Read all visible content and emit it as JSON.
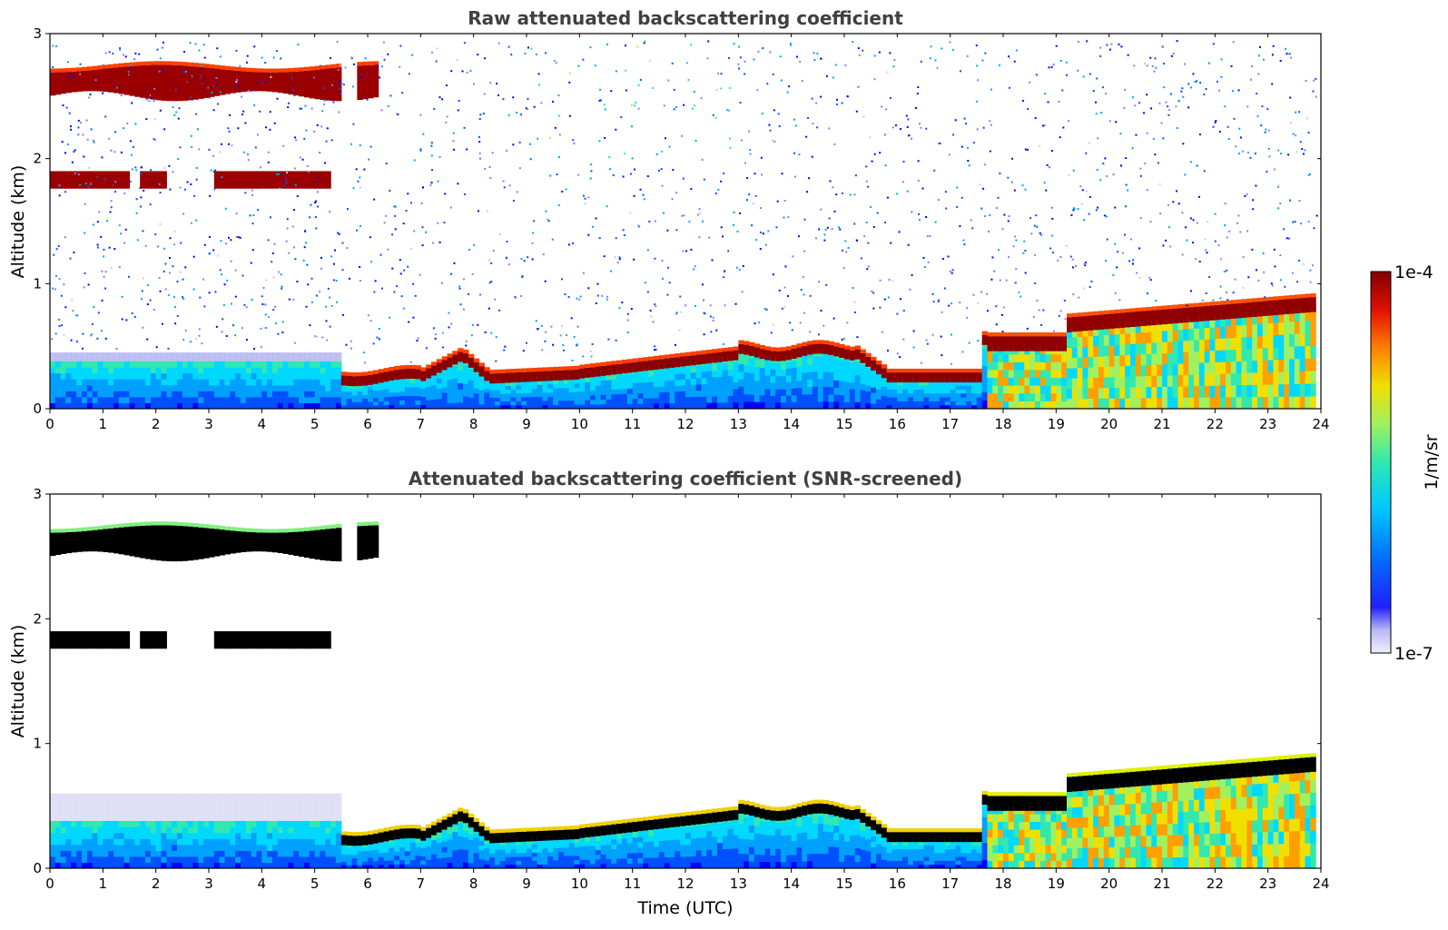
{
  "chart_data": [
    {
      "type": "heatmap",
      "title": "Raw attenuated backscattering coefficient",
      "xlabel": "",
      "ylabel": "Altitude (km)",
      "xlim": [
        0,
        24
      ],
      "ylim": [
        0,
        3
      ],
      "xticks": [
        "0",
        "1",
        "2",
        "3",
        "4",
        "5",
        "6",
        "7",
        "8",
        "9",
        "10",
        "11",
        "12",
        "13",
        "14",
        "15",
        "16",
        "17",
        "18",
        "19",
        "20",
        "21",
        "22",
        "23",
        "24"
      ],
      "yticks": [
        "0",
        "1",
        "2",
        "3"
      ],
      "features": [
        {
          "kind": "cloud",
          "t": [
            0,
            6.2
          ],
          "alt": [
            2.45,
            2.75
          ],
          "level": 1.0
        },
        {
          "kind": "cloud",
          "t": [
            0,
            5.3
          ],
          "alt": [
            1.75,
            1.9
          ],
          "level": 1.0,
          "gaps": [
            [
              1.5,
              1.7
            ],
            [
              2.2,
              3.1
            ]
          ]
        },
        {
          "kind": "boundary-layer-top",
          "t": [
            5.5,
            17.7
          ],
          "alt_range": [
            0.15,
            0.55
          ],
          "level": 1.0
        },
        {
          "kind": "cloud",
          "t": [
            17.7,
            23.8
          ],
          "alt": [
            0.3,
            0.9
          ],
          "level": 1.0
        },
        {
          "kind": "aerosol",
          "t": [
            0,
            24
          ],
          "alt": [
            0,
            0.4
          ],
          "level": 0.3
        },
        {
          "kind": "noise",
          "t": [
            0,
            24
          ],
          "alt": [
            0.4,
            3.0
          ],
          "level": 0.2
        }
      ]
    },
    {
      "type": "heatmap",
      "title": "Attenuated backscattering coefficient (SNR-screened)",
      "xlabel": "Time (UTC)",
      "ylabel": "Altitude (km)",
      "xlim": [
        0,
        24
      ],
      "ylim": [
        0,
        3
      ],
      "xticks": [
        "0",
        "1",
        "2",
        "3",
        "4",
        "5",
        "6",
        "7",
        "8",
        "9",
        "10",
        "11",
        "12",
        "13",
        "14",
        "15",
        "16",
        "17",
        "18",
        "19",
        "20",
        "21",
        "22",
        "23",
        "24"
      ],
      "yticks": [
        "0",
        "1",
        "2",
        "3"
      ],
      "features": [
        {
          "kind": "cloud-saturated",
          "t": [
            0,
            6.2
          ],
          "alt": [
            2.45,
            2.75
          ]
        },
        {
          "kind": "cloud-saturated",
          "t": [
            0,
            5.3
          ],
          "alt": [
            1.75,
            1.9
          ]
        },
        {
          "kind": "boundary-layer-top",
          "t": [
            5.5,
            17.7
          ],
          "alt_range": [
            0.15,
            0.55
          ]
        },
        {
          "kind": "cloud-saturated",
          "t": [
            17.7,
            23.8
          ],
          "alt": [
            0.3,
            0.9
          ]
        },
        {
          "kind": "aerosol",
          "t": [
            0,
            24
          ],
          "alt": [
            0,
            0.45
          ],
          "level": 0.25
        }
      ]
    }
  ],
  "colorbar": {
    "label": "1/m/sr",
    "max_label": "1e-4",
    "min_label": "1e-7",
    "colors": [
      "#e8e8f8",
      "#c8c8f0",
      "#a0a0f0",
      "#0000ff",
      "#0060ff",
      "#00c0ff",
      "#20e0c0",
      "#80f080",
      "#e0f000",
      "#ffc000",
      "#ff6000",
      "#e00000",
      "#800000"
    ]
  }
}
